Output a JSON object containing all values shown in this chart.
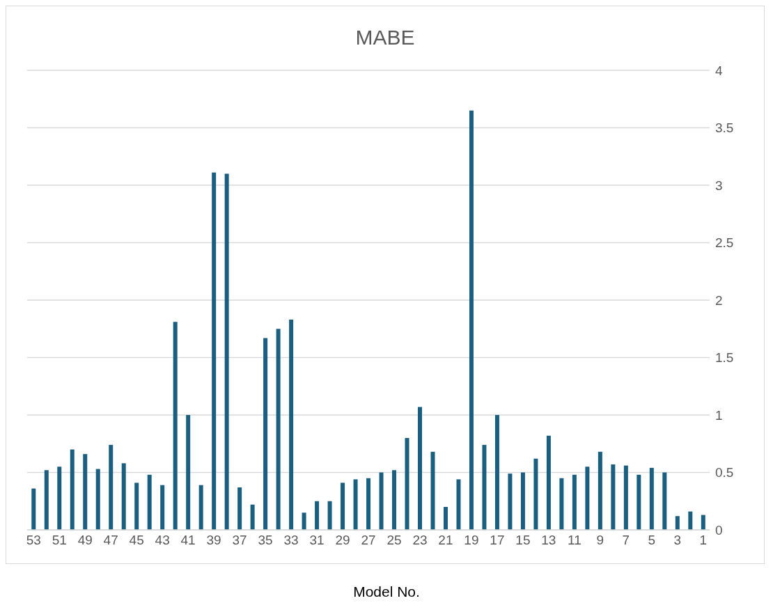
{
  "chart_data": {
    "type": "bar",
    "title": "MABE",
    "xlabel": "Model No.",
    "categories": [
      "53",
      null,
      "51",
      null,
      "49",
      null,
      "47",
      null,
      "45",
      null,
      "43",
      null,
      "41",
      null,
      "39",
      null,
      "37",
      null,
      "35",
      null,
      "33",
      null,
      "31",
      null,
      "29",
      null,
      "27",
      null,
      "25",
      null,
      "23",
      null,
      "21",
      null,
      "19",
      null,
      "17",
      null,
      "15",
      null,
      "13",
      null,
      "11",
      null,
      "9",
      null,
      "7",
      null,
      "5",
      null,
      "3",
      null,
      "1"
    ],
    "values": [
      0.36,
      0.52,
      0.55,
      0.7,
      0.66,
      0.53,
      0.74,
      0.58,
      0.41,
      0.48,
      0.39,
      1.81,
      1.0,
      0.39,
      3.11,
      3.1,
      0.37,
      0.22,
      1.67,
      1.75,
      1.83,
      0.15,
      0.25,
      0.25,
      0.41,
      0.44,
      0.45,
      0.5,
      0.52,
      0.8,
      1.07,
      0.68,
      0.2,
      0.44,
      3.65,
      0.74,
      1.0,
      0.49,
      0.5,
      0.62,
      0.82,
      0.45,
      0.48,
      0.55,
      0.68,
      0.57,
      0.56,
      0.48,
      0.54,
      0.5,
      0.12,
      0.16,
      0.13
    ],
    "color": "#1a5f80",
    "ylim": [
      0,
      4
    ],
    "yticks": [
      0,
      0.5,
      1,
      1.5,
      2,
      2.5,
      3,
      3.5,
      4
    ],
    "grid": "y"
  }
}
